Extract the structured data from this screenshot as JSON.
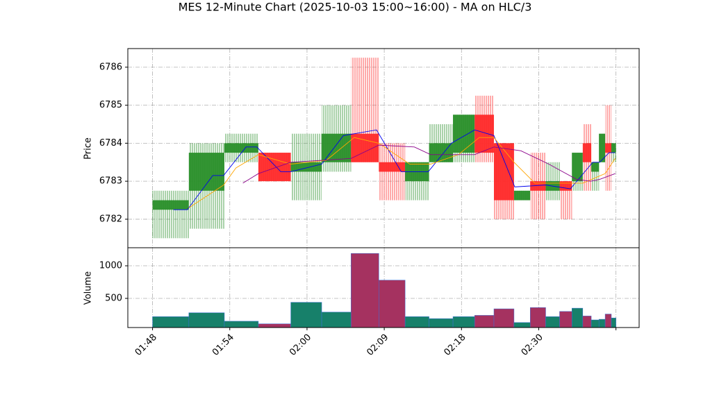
{
  "chart_data": {
    "type": "candlestick",
    "title": "MES 12-Minute Chart (2025-10-03 15:00~16:00) - MA on HLC/3",
    "y_label": "Price",
    "volume_label": "Volume",
    "xlim": [
      -3.2,
      63
    ],
    "ylim": [
      6781.25,
      6786.49
    ],
    "yticks": [
      6782,
      6783,
      6784,
      6785,
      6786
    ],
    "volume_ylim": [
      53,
      1277
    ],
    "volume_yticks": [
      500,
      1000
    ],
    "xticks": [
      {
        "value": 0,
        "label": "01:48"
      },
      {
        "value": 10,
        "label": "01:54"
      },
      {
        "value": 20,
        "label": "02:00"
      },
      {
        "value": 30,
        "label": "02:09"
      },
      {
        "value": 40,
        "label": "02:18"
      },
      {
        "value": 50,
        "label": "02:30"
      },
      {
        "value": 60,
        "label": null
      }
    ],
    "grid": true,
    "up_color": "#2a8f2a",
    "down_color": "#ff2a2a",
    "volume_up_color": "#17806a",
    "volume_down_color": "#a53260",
    "candles": {
      "x_start": [
        0,
        4.7,
        9.3,
        13.7,
        17.9,
        21.9,
        25.7,
        29.3,
        32.7,
        35.8,
        38.9,
        41.7,
        44.2,
        46.8,
        48.9,
        50.9,
        52.7,
        54.3,
        55.7,
        56.8,
        57.8,
        58.6,
        59.4
      ],
      "x_end": [
        4.7,
        9.3,
        13.7,
        17.9,
        21.9,
        25.7,
        29.3,
        32.7,
        35.8,
        38.9,
        41.7,
        44.2,
        46.8,
        48.9,
        50.9,
        52.7,
        54.3,
        55.7,
        56.8,
        57.8,
        58.6,
        59.4,
        60
      ],
      "open": [
        6782.25,
        6782.75,
        6783.75,
        6783.75,
        6783.25,
        6783.5,
        6784.25,
        6783.5,
        6783.0,
        6783.5,
        6783.75,
        6784.75,
        6784.0,
        6782.5,
        6783.0,
        6782.75,
        6783.0,
        6783.0,
        6784.0,
        6783.25,
        6783.5,
        6784.0,
        6783.75
      ],
      "high": [
        6782.75,
        6784.0,
        6784.25,
        6783.75,
        6784.25,
        6785.0,
        6786.25,
        6784.0,
        6783.5,
        6784.5,
        6784.75,
        6785.25,
        6784.0,
        6782.75,
        6783.75,
        6783.5,
        6783.0,
        6783.75,
        6784.5,
        6783.5,
        6784.25,
        6785.0,
        6784.0
      ],
      "low": [
        6781.5,
        6781.75,
        6783.5,
        6783.0,
        6782.5,
        6783.25,
        6783.5,
        6782.5,
        6782.5,
        6783.5,
        6783.5,
        6783.5,
        6782.0,
        6782.5,
        6782.0,
        6782.5,
        6782.0,
        6782.75,
        6782.75,
        6782.75,
        6783.5,
        6782.75,
        6783.5
      ],
      "close": [
        6782.5,
        6783.75,
        6784.0,
        6783.0,
        6783.5,
        6784.25,
        6783.5,
        6783.25,
        6783.5,
        6784.0,
        6784.75,
        6783.75,
        6782.5,
        6782.75,
        6782.75,
        6783.0,
        6782.75,
        6783.75,
        6783.5,
        6783.5,
        6784.25,
        6783.75,
        6784.0
      ],
      "volume": [
        220,
        280,
        150,
        110,
        440,
        290,
        1190,
        780,
        220,
        190,
        220,
        240,
        340,
        130,
        360,
        220,
        300,
        350,
        230,
        170,
        180,
        260,
        200
      ]
    },
    "lines": [
      {
        "color": "#0000ee",
        "x": [
          2.7,
          4.5,
          7.8,
          9.2,
          12.1,
          13.5,
          16.6,
          17.9,
          21.9,
          24.7,
          29,
          32.2,
          35.7,
          38.7,
          41.7,
          44.2,
          46.9,
          50.9,
          54.1,
          57,
          57.9,
          59.1,
          59.9
        ],
        "values": [
          6782.25,
          6782.25,
          6783.15,
          6783.15,
          6783.9,
          6783.9,
          6783.25,
          6783.25,
          6783.45,
          6784.2,
          6784.35,
          6783.25,
          6783.25,
          6784.0,
          6784.35,
          6784.2,
          6782.85,
          6782.9,
          6782.8,
          6783.5,
          6783.5,
          6783.75,
          6783.75
        ]
      },
      {
        "color": "#ffa500",
        "x": [
          4.7,
          9.2,
          10.8,
          13.7,
          17.9,
          22.5,
          26.1,
          29.3,
          33.3,
          36,
          39.6,
          42.3,
          44.2,
          46.8,
          49.5,
          52.2,
          55.7,
          58.6,
          59.9
        ],
        "values": [
          6782.3,
          6782.9,
          6783.35,
          6783.7,
          6783.45,
          6783.55,
          6784.15,
          6784.0,
          6783.45,
          6783.45,
          6783.7,
          6784.15,
          6784.15,
          6783.5,
          6782.95,
          6782.95,
          6782.95,
          6783.2,
          6783.6
        ]
      },
      {
        "color": "#8b008b",
        "x": [
          11.7,
          13.7,
          17.9,
          21.9,
          25.7,
          29.3,
          33.9,
          36,
          41.7,
          44.2,
          47.7,
          51.3,
          54.9,
          56.7,
          57.9,
          59.9
        ],
        "values": [
          6782.95,
          6783.2,
          6783.5,
          6783.55,
          6783.6,
          6783.95,
          6783.9,
          6783.7,
          6783.7,
          6783.9,
          6783.8,
          6783.45,
          6783.05,
          6783.0,
          6783.05,
          6783.2
        ]
      }
    ]
  }
}
